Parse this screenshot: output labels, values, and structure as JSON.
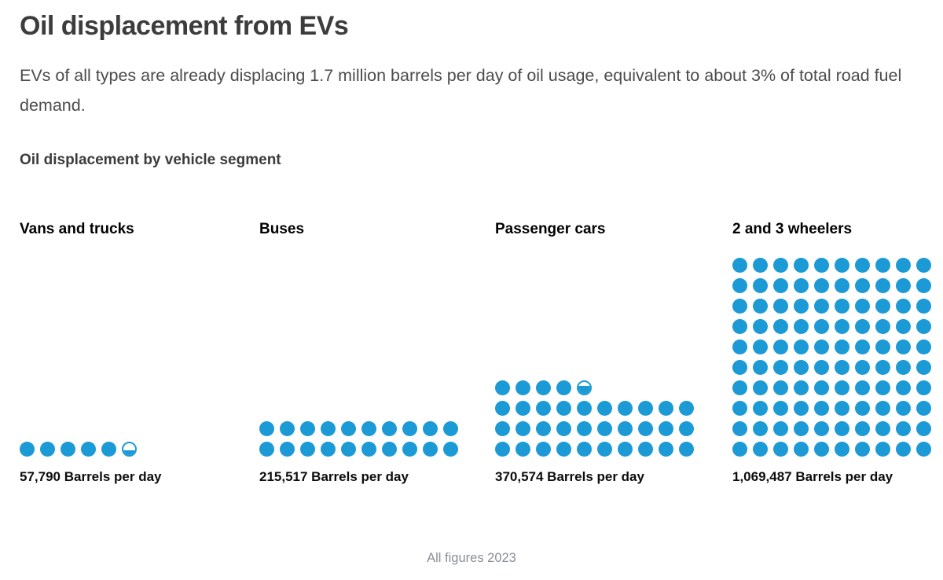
{
  "page": {
    "title": "Oil displacement from EVs",
    "subtitle": "EVs of all types are already displacing 1.7 million barrels per day of oil usage, equivalent to about 3% of total road fuel demand.",
    "section_heading": "Oil displacement by vehicle segment",
    "footnote": "All figures 2023"
  },
  "chart_data": {
    "type": "pictogram",
    "title": "Oil displacement by vehicle segment",
    "unit": "Barrels per day",
    "dots_per_row": 10,
    "categories": [
      "Vans and trucks",
      "Buses",
      "Passenger cars",
      "2 and 3 wheelers"
    ],
    "values": [
      57790,
      215517,
      370574,
      1069487
    ],
    "segments": [
      {
        "label": "Vans and trucks",
        "value": 57790,
        "value_label": "57,790 Barrels per day",
        "full_dots": 5,
        "partial_dot_fraction": 0.4
      },
      {
        "label": "Buses",
        "value": 215517,
        "value_label": "215,517 Barrels per day",
        "full_dots": 20,
        "partial_dot_fraction": 0
      },
      {
        "label": "Passenger cars",
        "value": 370574,
        "value_label": "370,574 Barrels per day",
        "full_dots": 34,
        "partial_dot_fraction": 0.68
      },
      {
        "label": "2 and 3 wheelers",
        "value": 1069487,
        "value_label": "1,069,487 Barrels per day",
        "full_dots": 100,
        "partial_dot_fraction": 0
      }
    ],
    "colors": {
      "dot": "#1b9ad6",
      "title_text": "#3c3c3c",
      "body_text": "#4c4c4c",
      "label_text": "#0d0d0d",
      "footnote_text": "#8a8f96"
    },
    "legend_position": "none",
    "grid": false
  }
}
